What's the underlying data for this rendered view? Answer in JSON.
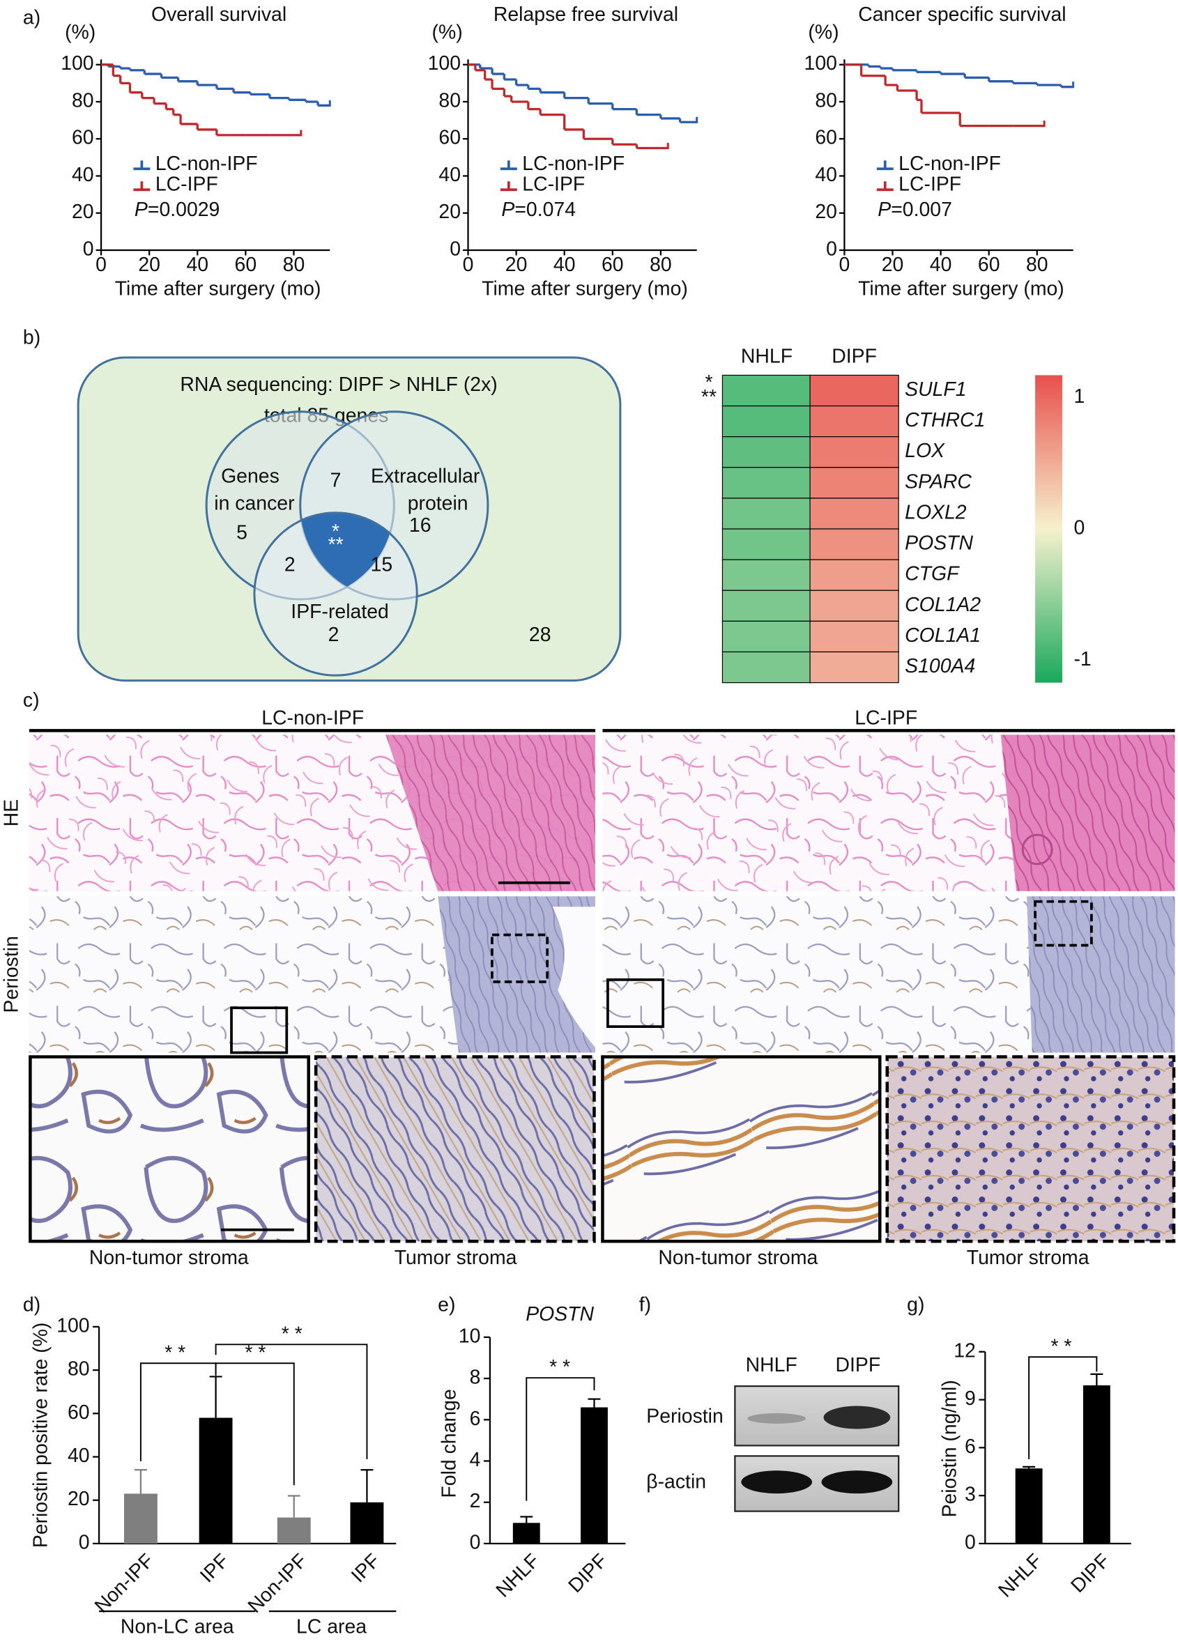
{
  "panel_labels": [
    "a)",
    "b)",
    "c)",
    "d)",
    "e)",
    "f)",
    "g)"
  ],
  "chart_data": [
    {
      "type": "line",
      "step": true,
      "title": "Overall survival",
      "y_unit": "(%)",
      "xlabel": "Time after surgery (mo)",
      "xlim": [
        0,
        95
      ],
      "xticks": [
        0,
        20,
        40,
        60,
        80
      ],
      "ylim": [
        0,
        100
      ],
      "yticks": [
        0,
        20,
        40,
        60,
        80,
        100
      ],
      "legend": "lower left",
      "series": [
        {
          "name": "LC-non-IPF",
          "color": "#2a5db0",
          "x": [
            0,
            3,
            8,
            12,
            18,
            25,
            32,
            40,
            48,
            55,
            62,
            70,
            78,
            85,
            90,
            95
          ],
          "values": [
            100,
            99,
            98,
            97,
            95,
            93,
            91,
            89,
            87,
            85,
            84,
            82,
            81,
            80,
            78,
            78
          ]
        },
        {
          "name": "LC-IPF",
          "color": "#c0282d",
          "x": [
            0,
            5,
            8,
            12,
            17,
            22,
            27,
            30,
            33,
            40,
            48,
            60,
            70,
            80,
            83
          ],
          "values": [
            100,
            94,
            90,
            85,
            82,
            79,
            76,
            73,
            68,
            65,
            62,
            62,
            62,
            62,
            62
          ]
        }
      ],
      "p_symbol": "P",
      "p_value": "=0.0029"
    },
    {
      "type": "line",
      "step": true,
      "title": "Relapse free survival",
      "y_unit": "(%)",
      "xlabel": "Time after surgery (mo)",
      "xlim": [
        0,
        95
      ],
      "xticks": [
        0,
        20,
        40,
        60,
        80
      ],
      "ylim": [
        0,
        100
      ],
      "yticks": [
        0,
        20,
        40,
        60,
        80,
        100
      ],
      "legend": "lower left",
      "series": [
        {
          "name": "LC-non-IPF",
          "color": "#2a5db0",
          "x": [
            0,
            5,
            10,
            15,
            20,
            25,
            30,
            40,
            50,
            60,
            70,
            80,
            88,
            95
          ],
          "values": [
            100,
            98,
            95,
            92,
            89,
            87,
            85,
            82,
            79,
            76,
            73,
            71,
            69,
            69
          ]
        },
        {
          "name": "LC-IPF",
          "color": "#c0282d",
          "x": [
            0,
            3,
            7,
            10,
            15,
            18,
            25,
            30,
            40,
            48,
            60,
            70,
            80,
            83
          ],
          "values": [
            100,
            97,
            92,
            87,
            83,
            80,
            76,
            73,
            65,
            60,
            57,
            55,
            55,
            55
          ]
        }
      ],
      "p_symbol": "P",
      "p_value": "=0.074"
    },
    {
      "type": "line",
      "step": true,
      "title": "Cancer specific survival",
      "y_unit": "(%)",
      "xlabel": "Time after surgery (mo)",
      "xlim": [
        0,
        95
      ],
      "xticks": [
        0,
        20,
        40,
        60,
        80
      ],
      "ylim": [
        0,
        100
      ],
      "yticks": [
        0,
        20,
        40,
        60,
        80,
        100
      ],
      "legend": "lower left",
      "series": [
        {
          "name": "LC-non-IPF",
          "color": "#2a5db0",
          "x": [
            0,
            5,
            10,
            15,
            20,
            30,
            40,
            50,
            60,
            70,
            80,
            90,
            95
          ],
          "values": [
            100,
            100,
            99,
            98,
            97,
            96,
            95,
            93,
            91,
            90,
            89,
            88,
            88
          ]
        },
        {
          "name": "LC-IPF",
          "color": "#c0282d",
          "x": [
            0,
            7,
            10,
            17,
            22,
            30,
            32,
            48,
            60,
            70,
            83
          ],
          "values": [
            100,
            94,
            94,
            89,
            86,
            81,
            74,
            67,
            67,
            67,
            67
          ]
        }
      ],
      "p_symbol": "P",
      "p_value": "=0.007"
    },
    {
      "type": "heatmap",
      "x": [
        "NHLF",
        "DIPF"
      ],
      "y": [
        "SULF1",
        "CTHRC1",
        "LOX",
        "SPARC",
        "LOXL2",
        "POSTN",
        "CTGF",
        "COL1A2",
        "COL1A1",
        "S100A4"
      ],
      "values": [
        [
          -0.85,
          1.0
        ],
        [
          -0.85,
          0.9
        ],
        [
          -0.8,
          0.85
        ],
        [
          -0.75,
          0.8
        ],
        [
          -0.7,
          0.75
        ],
        [
          -0.7,
          0.7
        ],
        [
          -0.65,
          0.6
        ],
        [
          -0.65,
          0.55
        ],
        [
          -0.65,
          0.55
        ],
        [
          -0.65,
          0.5
        ]
      ],
      "zlim": [
        -1.17,
        1.17
      ],
      "zticks": [
        1,
        0,
        -1
      ],
      "colormap": [
        "#1aa85c",
        "#f6f1cd",
        "#e8504d"
      ],
      "significance": [
        "*",
        "**"
      ]
    },
    {
      "type": "bar",
      "ylabel": "Periostin positive rate (%)",
      "categories": [
        "Non-IPF",
        "IPF",
        "Non-IPF",
        "IPF"
      ],
      "values": [
        23,
        58,
        12,
        19
      ],
      "errors": [
        11,
        19,
        10,
        15
      ],
      "colors": [
        "#7f7f7f",
        "#000000",
        "#7f7f7f",
        "#000000"
      ],
      "ylim": [
        0,
        100
      ],
      "yticks": [
        0,
        20,
        40,
        60,
        80,
        100
      ],
      "groups": [
        "Non-LC area",
        "LC area"
      ],
      "significance": [
        "* *",
        "* *",
        "* *"
      ]
    },
    {
      "type": "bar",
      "title": "POSTN",
      "ylabel": "Fold change",
      "categories": [
        "NHLF",
        "DIPF"
      ],
      "values": [
        1,
        6.6
      ],
      "errors": [
        0.3,
        0.4
      ],
      "colors": [
        "#000000",
        "#000000"
      ],
      "ylim": [
        0,
        10
      ],
      "yticks": [
        0,
        2,
        4,
        6,
        8,
        10
      ],
      "significance": [
        "* *"
      ]
    },
    {
      "type": "bar",
      "ylabel": "Peiostin (ng/ml)",
      "categories": [
        "NHLF",
        "DIPF"
      ],
      "values": [
        4.7,
        9.9
      ],
      "errors": [
        0.1,
        0.7
      ],
      "colors": [
        "#000000",
        "#000000"
      ],
      "ylim": [
        0,
        12
      ],
      "yticks": [
        0,
        3,
        6,
        9,
        12
      ],
      "significance": [
        "* *"
      ]
    }
  ],
  "venn": {
    "title": "RNA sequencing: DIPF > NHLF (2x)",
    "total": "total 85 genes",
    "sets": [
      {
        "label": [
          "Genes",
          "in cancer"
        ],
        "only": 5
      },
      {
        "label": [
          "Extracellular",
          "protein"
        ],
        "only": 16
      },
      {
        "label": [
          "IPF-related"
        ],
        "only": 2
      }
    ],
    "cancer_and_protein": 7,
    "cancer_and_ipf": 2,
    "protein_and_ipf": 15,
    "all_three": [
      "*",
      "**"
    ],
    "none": 28
  },
  "histology": {
    "columns": [
      "LC-non-IPF",
      "LC-IPF"
    ],
    "rows": [
      "HE",
      "Periostin"
    ],
    "captions": [
      "Non-tumor stroma",
      "Tumor stroma",
      "Non-tumor stroma",
      "Tumor stroma"
    ]
  },
  "western_blot": {
    "lanes": [
      "NHLF",
      "DIPF"
    ],
    "proteins": [
      "Periostin",
      "β-actin"
    ]
  }
}
